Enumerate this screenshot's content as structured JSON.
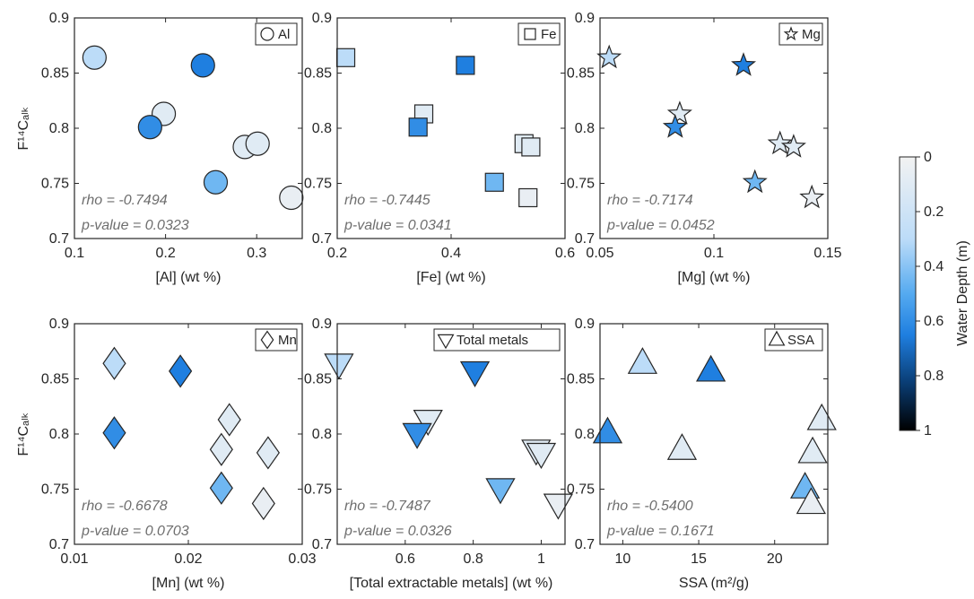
{
  "colorbar": {
    "label": "Water Depth (m)",
    "ticks": [
      "0",
      "0.2",
      "0.4",
      "0.6",
      "0.8",
      "1"
    ],
    "range": [
      0,
      1
    ],
    "colors": {
      "shallow": "#f2f2f2",
      "mid": "#55aaf0",
      "deep_mid": "#1f7fe0",
      "deep": "#000000"
    }
  },
  "marker_edge_color": "#262626",
  "chart_data": [
    {
      "type": "scatter",
      "marker": "circle",
      "legend": "Al",
      "xlabel": "[Al] (wt %)",
      "ylabel": "F¹⁴Cₐₗₖ",
      "xlim": [
        0.1,
        0.35
      ],
      "ylim": [
        0.7,
        0.9
      ],
      "xticks": [
        0.1,
        0.2,
        0.3
      ],
      "xtick_labels": [
        "0.1",
        "0.2",
        "0.3"
      ],
      "yticks": [
        0.7,
        0.75,
        0.8,
        0.85,
        0.9
      ],
      "ytick_labels": [
        "0.7",
        "0.75",
        "0.8",
        "0.85",
        "0.9"
      ],
      "stats": {
        "rho": "rho = -0.7494",
        "p": "p-value = 0.0323"
      },
      "points": [
        {
          "x": 0.122,
          "y": 0.864,
          "depth": 0.3
        },
        {
          "x": 0.241,
          "y": 0.857,
          "depth": 0.65
        },
        {
          "x": 0.198,
          "y": 0.813,
          "depth": 0.1
        },
        {
          "x": 0.183,
          "y": 0.801,
          "depth": 0.6
        },
        {
          "x": 0.287,
          "y": 0.783,
          "depth": 0.1
        },
        {
          "x": 0.301,
          "y": 0.786,
          "depth": 0.1
        },
        {
          "x": 0.255,
          "y": 0.751,
          "depth": 0.45
        },
        {
          "x": 0.338,
          "y": 0.737,
          "depth": 0.05
        }
      ]
    },
    {
      "type": "scatter",
      "marker": "square",
      "legend": "Fe",
      "xlabel": "[Fe] (wt %)",
      "ylabel": "",
      "xlim": [
        0.2,
        0.6
      ],
      "ylim": [
        0.7,
        0.9
      ],
      "xticks": [
        0.2,
        0.4,
        0.6
      ],
      "xtick_labels": [
        "0.2",
        "0.4",
        "0.6"
      ],
      "yticks": [
        0.7,
        0.75,
        0.8,
        0.85,
        0.9
      ],
      "ytick_labels": [
        "0.7",
        "0.75",
        "0.8",
        "0.85",
        "0.9"
      ],
      "stats": {
        "rho": "rho = -0.7445",
        "p": "p-value = 0.0341"
      },
      "points": [
        {
          "x": 0.215,
          "y": 0.864,
          "depth": 0.3
        },
        {
          "x": 0.425,
          "y": 0.857,
          "depth": 0.65
        },
        {
          "x": 0.352,
          "y": 0.813,
          "depth": 0.1
        },
        {
          "x": 0.342,
          "y": 0.801,
          "depth": 0.6
        },
        {
          "x": 0.528,
          "y": 0.786,
          "depth": 0.1
        },
        {
          "x": 0.54,
          "y": 0.783,
          "depth": 0.1
        },
        {
          "x": 0.476,
          "y": 0.751,
          "depth": 0.45
        },
        {
          "x": 0.535,
          "y": 0.737,
          "depth": 0.05
        }
      ]
    },
    {
      "type": "scatter",
      "marker": "star",
      "legend": "Mg",
      "xlabel": "[Mg] (wt %)",
      "ylabel": "",
      "xlim": [
        0.05,
        0.15
      ],
      "ylim": [
        0.7,
        0.9
      ],
      "xticks": [
        0.05,
        0.1,
        0.15
      ],
      "xtick_labels": [
        "0.05",
        "0.1",
        "0.15"
      ],
      "yticks": [
        0.7,
        0.75,
        0.8,
        0.85,
        0.9
      ],
      "ytick_labels": [
        "0.7",
        "0.75",
        "0.8",
        "0.85",
        "0.9"
      ],
      "stats": {
        "rho": "rho = -0.7174",
        "p": "p-value = 0.0452"
      },
      "points": [
        {
          "x": 0.054,
          "y": 0.864,
          "depth": 0.3
        },
        {
          "x": 0.113,
          "y": 0.857,
          "depth": 0.65
        },
        {
          "x": 0.085,
          "y": 0.813,
          "depth": 0.1
        },
        {
          "x": 0.083,
          "y": 0.801,
          "depth": 0.6
        },
        {
          "x": 0.129,
          "y": 0.786,
          "depth": 0.1
        },
        {
          "x": 0.135,
          "y": 0.783,
          "depth": 0.1
        },
        {
          "x": 0.118,
          "y": 0.751,
          "depth": 0.45
        },
        {
          "x": 0.143,
          "y": 0.737,
          "depth": 0.05
        }
      ]
    },
    {
      "type": "scatter",
      "marker": "diamond",
      "legend": "Mn",
      "xlabel": "[Mn] (wt %)",
      "ylabel": "F¹⁴Cₐₗₖ",
      "xlim": [
        0.01,
        0.03
      ],
      "ylim": [
        0.7,
        0.9
      ],
      "xticks": [
        0.01,
        0.02,
        0.03
      ],
      "xtick_labels": [
        "0.01",
        "0.02",
        "0.03"
      ],
      "yticks": [
        0.7,
        0.75,
        0.8,
        0.85,
        0.9
      ],
      "ytick_labels": [
        "0.7",
        "0.75",
        "0.8",
        "0.85",
        "0.9"
      ],
      "stats": {
        "rho": "rho = -0.6678",
        "p": "p-value = 0.0703"
      },
      "points": [
        {
          "x": 0.0135,
          "y": 0.864,
          "depth": 0.3
        },
        {
          "x": 0.0193,
          "y": 0.857,
          "depth": 0.65
        },
        {
          "x": 0.0236,
          "y": 0.813,
          "depth": 0.1
        },
        {
          "x": 0.0135,
          "y": 0.801,
          "depth": 0.6
        },
        {
          "x": 0.0229,
          "y": 0.786,
          "depth": 0.1
        },
        {
          "x": 0.027,
          "y": 0.783,
          "depth": 0.1
        },
        {
          "x": 0.0229,
          "y": 0.751,
          "depth": 0.45
        },
        {
          "x": 0.0266,
          "y": 0.737,
          "depth": 0.05
        }
      ]
    },
    {
      "type": "scatter",
      "marker": "triangle-down",
      "legend": "Total metals",
      "xlabel": "[Total extractable metals] (wt %)",
      "ylabel": "",
      "xlim": [
        0.4,
        1.07
      ],
      "ylim": [
        0.7,
        0.9
      ],
      "xticks": [
        0.6,
        0.8,
        1.0
      ],
      "xtick_labels": [
        "0.6",
        "0.8",
        "1"
      ],
      "yticks": [
        0.7,
        0.75,
        0.8,
        0.85,
        0.9
      ],
      "ytick_labels": [
        "0.7",
        "0.75",
        "0.8",
        "0.85",
        "0.9"
      ],
      "stats": {
        "rho": "rho = -0.7487",
        "p": "p-value = 0.0326"
      },
      "points": [
        {
          "x": 0.405,
          "y": 0.864,
          "depth": 0.3
        },
        {
          "x": 0.805,
          "y": 0.857,
          "depth": 0.65
        },
        {
          "x": 0.667,
          "y": 0.813,
          "depth": 0.1
        },
        {
          "x": 0.635,
          "y": 0.801,
          "depth": 0.6
        },
        {
          "x": 0.985,
          "y": 0.786,
          "depth": 0.1
        },
        {
          "x": 1.0,
          "y": 0.783,
          "depth": 0.1
        },
        {
          "x": 0.88,
          "y": 0.751,
          "depth": 0.45
        },
        {
          "x": 1.05,
          "y": 0.737,
          "depth": 0.05
        }
      ]
    },
    {
      "type": "scatter",
      "marker": "triangle-up",
      "legend": "SSA",
      "xlabel": "SSA (m²/g)",
      "ylabel": "",
      "xlim": [
        8.5,
        23.5
      ],
      "ylim": [
        0.7,
        0.9
      ],
      "xticks": [
        10,
        15,
        20
      ],
      "xtick_labels": [
        "10",
        "15",
        "20"
      ],
      "yticks": [
        0.7,
        0.75,
        0.8,
        0.85,
        0.9
      ],
      "ytick_labels": [
        "0.7",
        "0.75",
        "0.8",
        "0.85",
        "0.9"
      ],
      "stats": {
        "rho": "rho = -0.5400",
        "p": "p-value = 0.1671"
      },
      "points": [
        {
          "x": 11.3,
          "y": 0.864,
          "depth": 0.3
        },
        {
          "x": 15.8,
          "y": 0.857,
          "depth": 0.65
        },
        {
          "x": 23.1,
          "y": 0.813,
          "depth": 0.1
        },
        {
          "x": 9.0,
          "y": 0.801,
          "depth": 0.6
        },
        {
          "x": 22.5,
          "y": 0.783,
          "depth": 0.1
        },
        {
          "x": 13.9,
          "y": 0.786,
          "depth": 0.1
        },
        {
          "x": 22.0,
          "y": 0.751,
          "depth": 0.45
        },
        {
          "x": 22.4,
          "y": 0.737,
          "depth": 0.05
        }
      ]
    }
  ]
}
